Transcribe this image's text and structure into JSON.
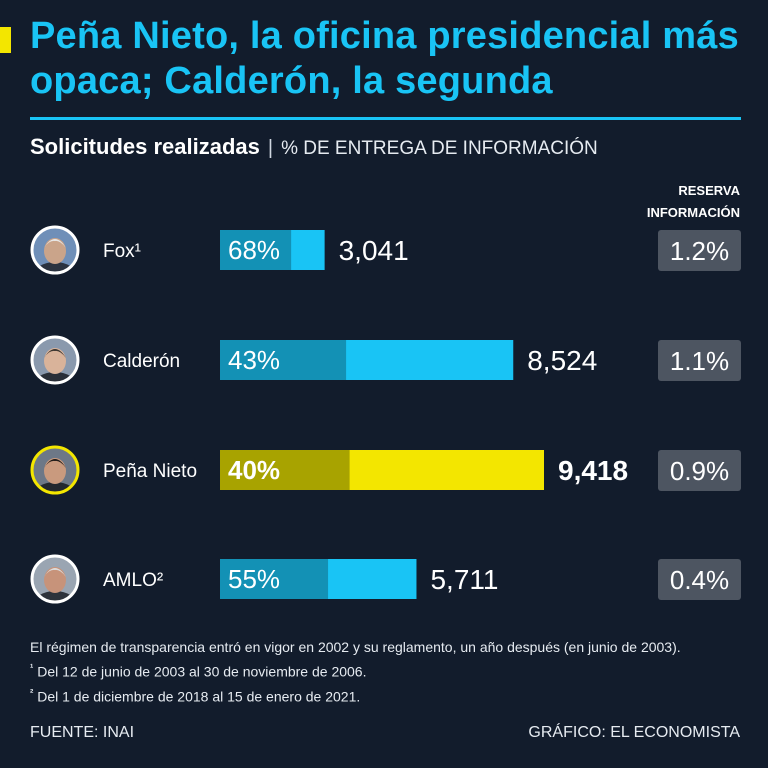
{
  "title": "Peña Nieto, la oficina presidencial más opaca; Calderón, la segunda",
  "subtitle": {
    "main": "Solicitudes realizadas",
    "separator": "|",
    "secondary": "% DE ENTREGA DE INFORMACIÓN"
  },
  "reserve_header": {
    "line1": "RESERVA",
    "line2": "INFORMACIÓN"
  },
  "colors": {
    "background": "#121c2c",
    "accent_blue": "#19c4f5",
    "accent_blue_dark": "#1391b5",
    "accent_yellow": "#f3e600",
    "accent_yellow_dark": "#a8a300",
    "reserve_box": "#4d5561"
  },
  "chart_data": {
    "type": "bar",
    "orientation": "horizontal",
    "title": "Solicitudes realizadas",
    "categories": [
      "Fox¹",
      "Calderón",
      "Peña Nieto",
      "AMLO²"
    ],
    "series": [
      {
        "name": "Solicitudes realizadas",
        "values": [
          3041,
          8524,
          9418,
          5711
        ],
        "labels": [
          "3,041",
          "8,524",
          "9,418",
          "5,711"
        ]
      },
      {
        "name": "% de entrega de información",
        "values": [
          68,
          43,
          40,
          55
        ],
        "labels": [
          "68%",
          "43%",
          "40%",
          "55%"
        ]
      },
      {
        "name": "Reserva información (%)",
        "values": [
          1.2,
          1.1,
          0.9,
          0.4
        ],
        "labels": [
          "1.2%",
          "1.1%",
          "0.9%",
          "0.4%"
        ]
      }
    ],
    "highlight": "Peña Nieto",
    "xlim": [
      0,
      9418
    ]
  },
  "notes": {
    "main": "El régimen de transparencia entró en vigor en 2002 y su reglamento, un año después (en junio de 2003).",
    "note1_mark": "¹",
    "note1": "Del 12 de junio de 2003 al 30 de noviembre de 2006.",
    "note2_mark": "²",
    "note2": "Del 1 de diciembre de 2018 al 15 de enero de 2021."
  },
  "source": "FUENTE: INAI",
  "credit": "GRÁFICO: EL ECONOMISTA"
}
